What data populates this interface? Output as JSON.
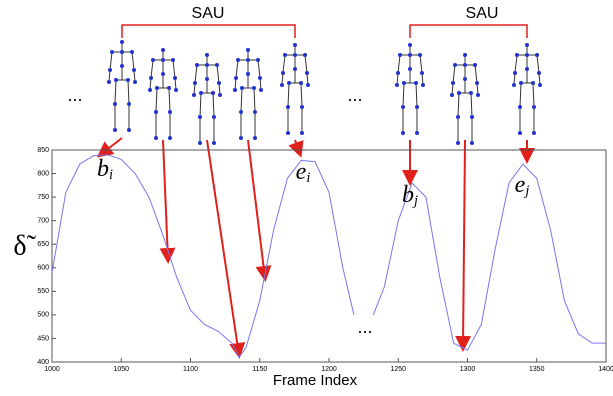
{
  "chart_data": {
    "type": "line",
    "x_label": "Frame Index",
    "y_label": "δ̃",
    "x": [
      1000,
      1010,
      1020,
      1030,
      1040,
      1050,
      1060,
      1070,
      1080,
      1090,
      1100,
      1110,
      1120,
      1130,
      1135,
      1140,
      1150,
      1160,
      1170,
      1180,
      1190,
      1200,
      1210,
      1218,
      1225,
      1232,
      1240,
      1250,
      1260,
      1270,
      1280,
      1290,
      1300,
      1310,
      1320,
      1330,
      1340,
      1350,
      1360,
      1370,
      1380,
      1390,
      1400
    ],
    "series": [
      {
        "color": "#7777ee",
        "values": [
          590,
          760,
          820,
          838,
          840,
          830,
          800,
          750,
          670,
          580,
          510,
          480,
          465,
          440,
          410,
          430,
          530,
          680,
          790,
          828,
          825,
          760,
          600,
          500,
          null,
          500,
          560,
          700,
          780,
          750,
          580,
          440,
          425,
          480,
          640,
          780,
          820,
          790,
          680,
          530,
          460,
          440,
          440
        ]
      }
    ],
    "xlim": [
      1000,
      1400
    ],
    "xticks": [
      1000,
      1050,
      1100,
      1150,
      1200,
      1250,
      1300,
      1350,
      1400
    ],
    "ylim": [
      400,
      850
    ],
    "yticks": [
      400,
      450,
      500,
      550,
      600,
      650,
      700,
      750,
      800,
      850
    ],
    "annotations": [
      {
        "text": "SAU"
      },
      {
        "text": "SAU"
      },
      {
        "text": "..."
      },
      {
        "text": "..."
      },
      {
        "text": "..."
      },
      {
        "text": "b",
        "sub": "i"
      },
      {
        "text": "e",
        "sub": "i"
      },
      {
        "text": "b",
        "sub": "j"
      },
      {
        "text": "e",
        "sub": "j"
      }
    ]
  }
}
